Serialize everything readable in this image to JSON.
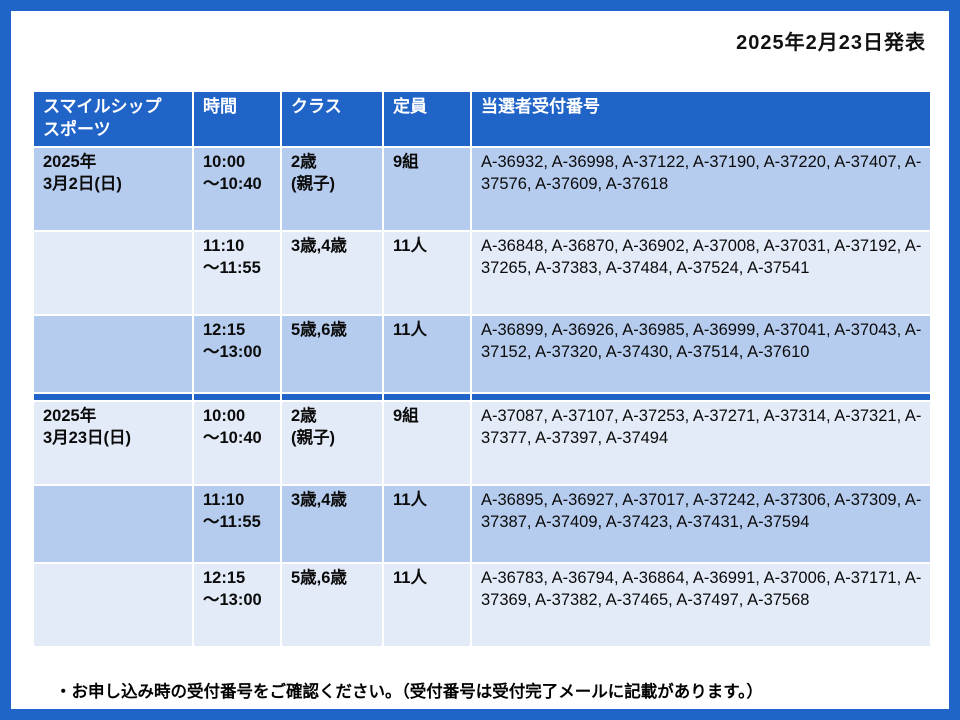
{
  "page": {
    "announce_date": "2025年2月23日発表",
    "footnote": "・お申し込み時の受付番号をご確認ください。（受付番号は受付完了メールに記載があります。）"
  },
  "colors": {
    "frame_blue": "#2064C8",
    "header_blue": "#2064C8",
    "row_band_dark": "#B6CCEE",
    "row_band_light": "#E3EAF8"
  },
  "table": {
    "headers": [
      "スマイルシップ\nスポーツ",
      "時間",
      "クラス",
      "定員",
      "当選者受付番号"
    ],
    "sections": [
      {
        "date": "2025年\n3月2日(日)",
        "rows": [
          {
            "time": "10:00\n～10:40",
            "class": "2歳\n(親子)",
            "capacity": "9組",
            "winners": "A-36932, A-36998, A-37122, A-37190, A-37220, A-37407, A-37576, A-37609, A-37618"
          },
          {
            "time": "11:10\n～11:55",
            "class": "3歳,4歳",
            "capacity": "11人",
            "winners": "A-36848, A-36870, A-36902, A-37008, A-37031, A-37192, A-37265, A-37383, A-37484, A-37524, A-37541"
          },
          {
            "time": "12:15\n～13:00",
            "class": "5歳,6歳",
            "capacity": "11人",
            "winners": "A-36899, A-36926, A-36985, A-36999, A-37041, A-37043, A-37152, A-37320, A-37430, A-37514, A-37610"
          }
        ]
      },
      {
        "date": "2025年\n3月23日(日)",
        "rows": [
          {
            "time": "10:00\n～10:40",
            "class": "2歳\n(親子)",
            "capacity": "9組",
            "winners": "A-37087, A-37107, A-37253, A-37271, A-37314, A-37321, A-37377, A-37397, A-37494"
          },
          {
            "time": "11:10\n～11:55",
            "class": "3歳,4歳",
            "capacity": "11人",
            "winners": "A-36895, A-36927, A-37017, A-37242, A-37306, A-37309, A-37387, A-37409, A-37423, A-37431, A-37594"
          },
          {
            "time": "12:15\n～13:00",
            "class": "5歳,6歳",
            "capacity": "11人",
            "winners": "A-36783, A-36794, A-36864, A-36991, A-37006, A-37171, A-37369, A-37382, A-37465, A-37497, A-37568"
          }
        ]
      }
    ]
  }
}
